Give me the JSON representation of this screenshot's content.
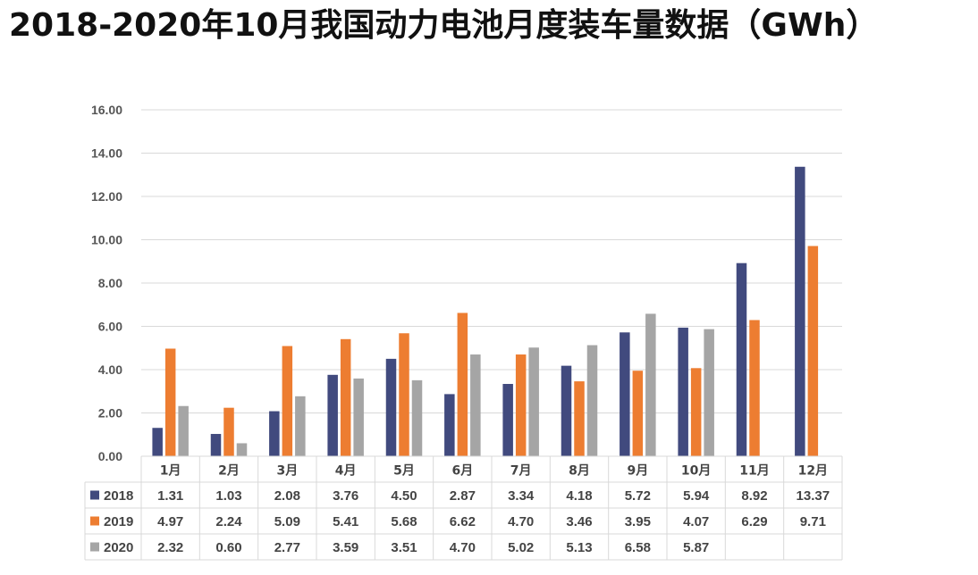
{
  "title": "2018-2020年10月我国动力电池月度装车量数据（GWh）",
  "chart_data": {
    "type": "bar",
    "title": "2018-2020年10月我国动力电池月度装车量数据（GWh）",
    "unit": "GWh",
    "categories": [
      "1月",
      "2月",
      "3月",
      "4月",
      "5月",
      "6月",
      "7月",
      "8月",
      "9月",
      "10月",
      "11月",
      "12月"
    ],
    "ylim": [
      0,
      16
    ],
    "yticks": [
      "0.00",
      "2.00",
      "4.00",
      "6.00",
      "8.00",
      "10.00",
      "12.00",
      "14.00",
      "16.00"
    ],
    "grid": true,
    "legend": "bottom-table",
    "series": [
      {
        "name": "2018",
        "color": "#414A7E",
        "values": [
          1.31,
          1.03,
          2.08,
          3.76,
          4.5,
          2.87,
          3.34,
          4.18,
          5.72,
          5.94,
          8.92,
          13.37
        ],
        "labels": [
          "1.31",
          "1.03",
          "2.08",
          "3.76",
          "4.50",
          "2.87",
          "3.34",
          "4.18",
          "5.72",
          "5.94",
          "8.92",
          "13.37"
        ]
      },
      {
        "name": "2019",
        "color": "#ED7D31",
        "values": [
          4.97,
          2.24,
          5.09,
          5.41,
          5.68,
          6.62,
          4.7,
          3.46,
          3.95,
          4.07,
          6.29,
          9.71
        ],
        "labels": [
          "4.97",
          "2.24",
          "5.09",
          "5.41",
          "5.68",
          "6.62",
          "4.70",
          "3.46",
          "3.95",
          "4.07",
          "6.29",
          "9.71"
        ]
      },
      {
        "name": "2020",
        "color": "#A5A5A5",
        "values": [
          2.32,
          0.6,
          2.77,
          3.59,
          3.51,
          4.7,
          5.02,
          5.13,
          6.58,
          5.87,
          null,
          null
        ],
        "labels": [
          "2.32",
          "0.60",
          "2.77",
          "3.59",
          "3.51",
          "4.70",
          "5.02",
          "5.13",
          "6.58",
          "5.87",
          "",
          ""
        ]
      }
    ]
  }
}
